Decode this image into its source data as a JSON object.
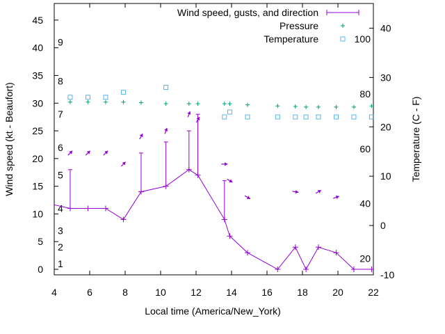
{
  "chart_data": {
    "type": "line",
    "xlabel": "Local time (America/New_York)",
    "ylabel_left": "Wind speed (kt - Beaufort)",
    "ylabel_right": "Temperature (C - F)",
    "xlim": [
      4,
      22
    ],
    "ylim_left": [
      -1,
      48
    ],
    "ylim_right": [
      -10,
      45
    ],
    "x_ticks": [
      "4",
      "6",
      "8",
      "10",
      "12",
      "14",
      "16",
      "18",
      "20",
      "22"
    ],
    "y_ticks_left": [
      "0",
      "5",
      "10",
      "15",
      "20",
      "25",
      "30",
      "35",
      "40",
      "45"
    ],
    "y_ticks_right": [
      "-10",
      "0",
      "10",
      "20",
      "30",
      "40"
    ],
    "beaufort_labels": [
      "1",
      "2",
      "3",
      "4",
      "5",
      "6",
      "7",
      "8",
      "9"
    ],
    "fahrenheit_labels": [
      "20",
      "40",
      "60",
      "80",
      "100"
    ],
    "legend": [
      {
        "label": "Wind speed, gusts, and direction",
        "color": "#9400d3"
      },
      {
        "label": "Pressure",
        "color": "#009e73"
      },
      {
        "label": "Temperature",
        "color": "#56b4e9"
      }
    ],
    "wind": {
      "x": [
        3.5,
        4.9,
        5.9,
        6.9,
        7.9,
        8.9,
        10.3,
        11.6,
        12.1,
        13.6,
        13.9,
        14.9,
        16.6,
        17.6,
        18.2,
        18.9,
        19.9,
        20.9,
        21.9
      ],
      "y": [
        12,
        11,
        11,
        11,
        9,
        14,
        15,
        18,
        17,
        9,
        6,
        3,
        0,
        4,
        0,
        4,
        3,
        0,
        0
      ],
      "gust": [
        null,
        18,
        null,
        null,
        null,
        21,
        23,
        25,
        28,
        16,
        null,
        null,
        null,
        null,
        null,
        null,
        null,
        null,
        null
      ],
      "direction_deg": [
        0,
        45,
        45,
        45,
        45,
        30,
        20,
        20,
        30,
        90,
        120,
        120,
        null,
        100,
        null,
        60,
        70,
        null,
        null
      ]
    },
    "pressure": {
      "x": [
        4.9,
        5.9,
        6.9,
        7.9,
        8.9,
        10.3,
        11.6,
        12.1,
        13.6,
        13.9,
        14.9,
        16.6,
        17.6,
        18.2,
        18.9,
        19.9,
        20.9,
        21.9
      ],
      "y": [
        30.2,
        30.2,
        30.2,
        30.2,
        30.1,
        29.9,
        29.9,
        29.9,
        29.9,
        29.9,
        29.7,
        29.5,
        29.4,
        29.3,
        29.3,
        29.3,
        29.3,
        29.5
      ]
    },
    "temperature": {
      "x": [
        4.9,
        5.9,
        6.9,
        7.9,
        10.3,
        13.6,
        13.9,
        14.9,
        16.6,
        17.6,
        18.2,
        18.9,
        19.9,
        20.9,
        21.9
      ],
      "y": [
        26,
        26,
        26,
        27,
        28,
        22,
        23,
        22,
        22,
        22,
        22,
        22,
        22,
        22,
        22
      ]
    }
  }
}
